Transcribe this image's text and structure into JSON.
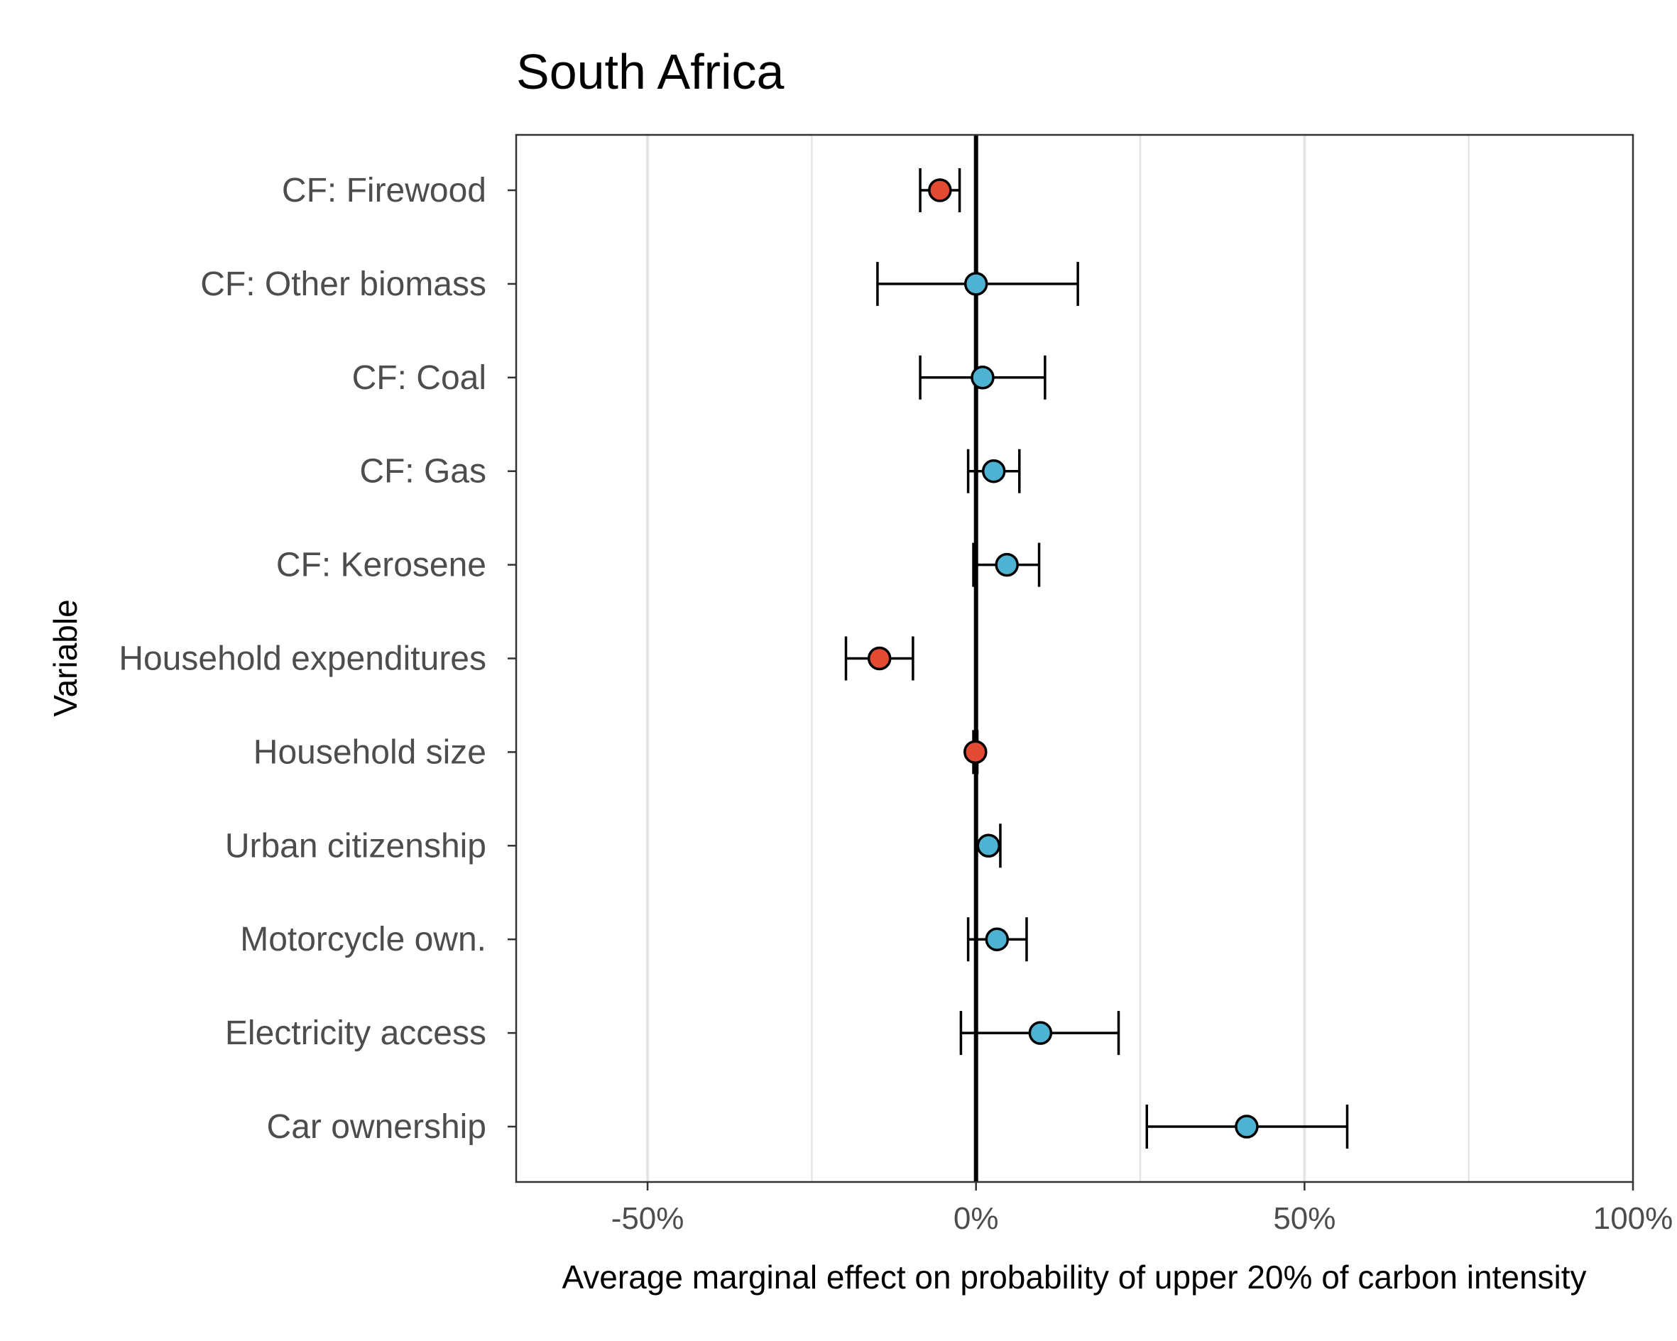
{
  "chart_data": {
    "type": "scatter",
    "subtype": "coefficient-plot-with-error-bars",
    "title": "South Africa",
    "xlabel": "Average marginal effect on probability of upper 20% of carbon intensity",
    "ylabel": "Variable",
    "xlim": [
      -0.7,
      1.0
    ],
    "x_ticks": [
      -0.5,
      0,
      0.5,
      1.0
    ],
    "x_tick_labels": [
      "-50%",
      "0%",
      "50%",
      "100%"
    ],
    "reference_line_x": 0,
    "grid": {
      "major_vertical": true,
      "minor_vertical": true,
      "horizontal": false
    },
    "colors": {
      "negative": "#e34a33",
      "positive": "#4eb3d3",
      "line": "#000000",
      "grid": "#e5e5e5"
    },
    "categories": [
      "CF: Firewood",
      "CF: Other biomass",
      "CF: Coal",
      "CF: Gas",
      "CF: Kerosene",
      "Household expenditures",
      "Household size",
      "Urban citizenship",
      "Motorcycle own.",
      "Electricity access",
      "Car ownership"
    ],
    "points": [
      {
        "label": "CF: Firewood",
        "estimate": -0.055,
        "low": -0.085,
        "high": -0.025,
        "sign": "negative"
      },
      {
        "label": "CF: Other biomass",
        "estimate": 0.0,
        "low": -0.15,
        "high": 0.155,
        "sign": "positive"
      },
      {
        "label": "CF: Coal",
        "estimate": 0.01,
        "low": -0.085,
        "high": 0.105,
        "sign": "positive"
      },
      {
        "label": "CF: Gas",
        "estimate": 0.027,
        "low": -0.012,
        "high": 0.066,
        "sign": "positive"
      },
      {
        "label": "CF: Kerosene",
        "estimate": 0.047,
        "low": -0.004,
        "high": 0.096,
        "sign": "positive"
      },
      {
        "label": "Household expenditures",
        "estimate": -0.147,
        "low": -0.198,
        "high": -0.096,
        "sign": "negative"
      },
      {
        "label": "Household size",
        "estimate": -0.001,
        "low": -0.004,
        "high": 0.002,
        "sign": "negative"
      },
      {
        "label": "Urban citizenship",
        "estimate": 0.019,
        "low": 0.0,
        "high": 0.037,
        "sign": "positive"
      },
      {
        "label": "Motorcycle own.",
        "estimate": 0.032,
        "low": -0.012,
        "high": 0.077,
        "sign": "positive"
      },
      {
        "label": "Electricity access",
        "estimate": 0.098,
        "low": -0.023,
        "high": 0.217,
        "sign": "positive"
      },
      {
        "label": "Car ownership",
        "estimate": 0.412,
        "low": 0.26,
        "high": 0.565,
        "sign": "positive"
      }
    ]
  }
}
